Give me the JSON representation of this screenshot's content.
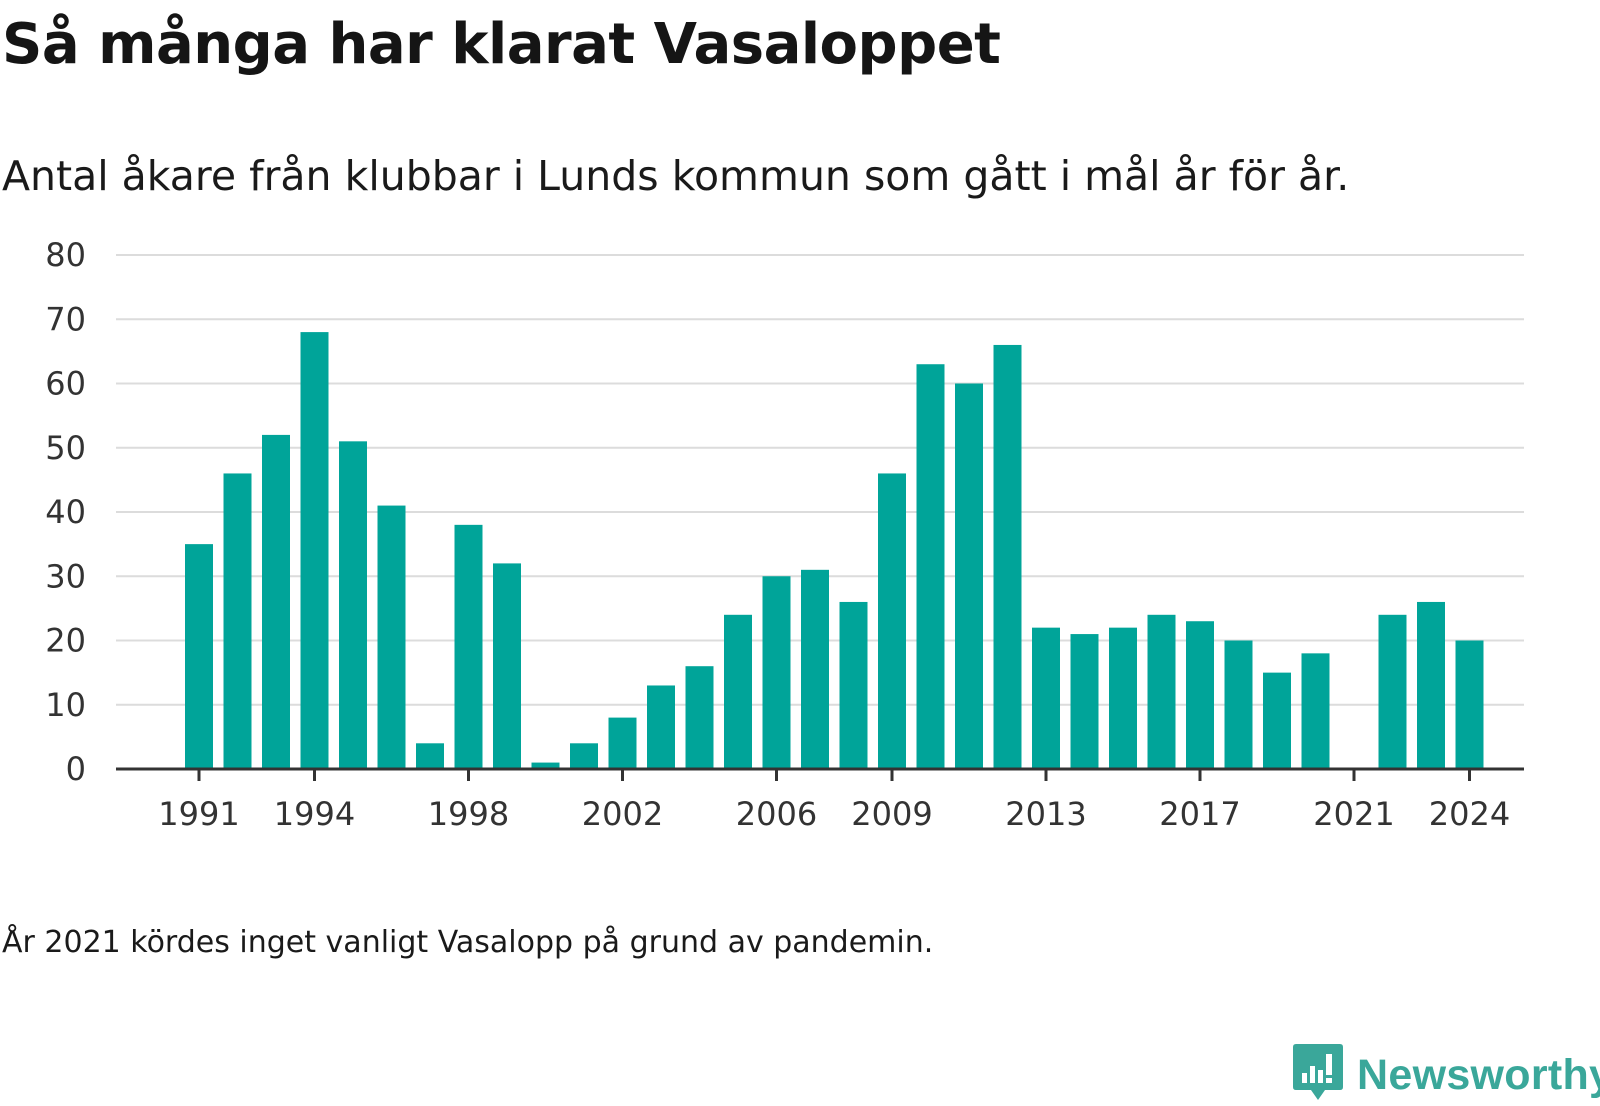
{
  "title": "Så många har klarat Vasaloppet",
  "subtitle": "Antal åkare från klubbar i Lunds kommun som gått i mål år för år.",
  "note": "År 2021 kördes inget vanligt Vasalopp på grund av pandemin.",
  "brand": {
    "name": "Newsworthy",
    "icon": "newsworthy-logo-icon",
    "color": "#3aa79a"
  },
  "chart_data": {
    "type": "bar",
    "bar_color": "#00a499",
    "grid": true,
    "ylim": [
      0,
      80
    ],
    "y_ticks": [
      0,
      10,
      20,
      30,
      40,
      50,
      60,
      70,
      80
    ],
    "x_tick_labels": [
      "1991",
      "1994",
      "1998",
      "2002",
      "2006",
      "2009",
      "2013",
      "2017",
      "2021",
      "2024"
    ],
    "categories": [
      1991,
      1992,
      1993,
      1994,
      1995,
      1996,
      1997,
      1998,
      1999,
      2000,
      2001,
      2002,
      2003,
      2004,
      2005,
      2006,
      2007,
      2008,
      2009,
      2010,
      2011,
      2012,
      2013,
      2014,
      2015,
      2016,
      2017,
      2018,
      2019,
      2020,
      2021,
      2022,
      2023,
      2024
    ],
    "values": [
      35,
      46,
      52,
      68,
      51,
      41,
      4,
      38,
      32,
      1,
      4,
      8,
      13,
      16,
      24,
      30,
      31,
      26,
      46,
      63,
      60,
      66,
      22,
      21,
      22,
      24,
      23,
      20,
      15,
      18,
      0,
      24,
      26,
      20
    ]
  }
}
